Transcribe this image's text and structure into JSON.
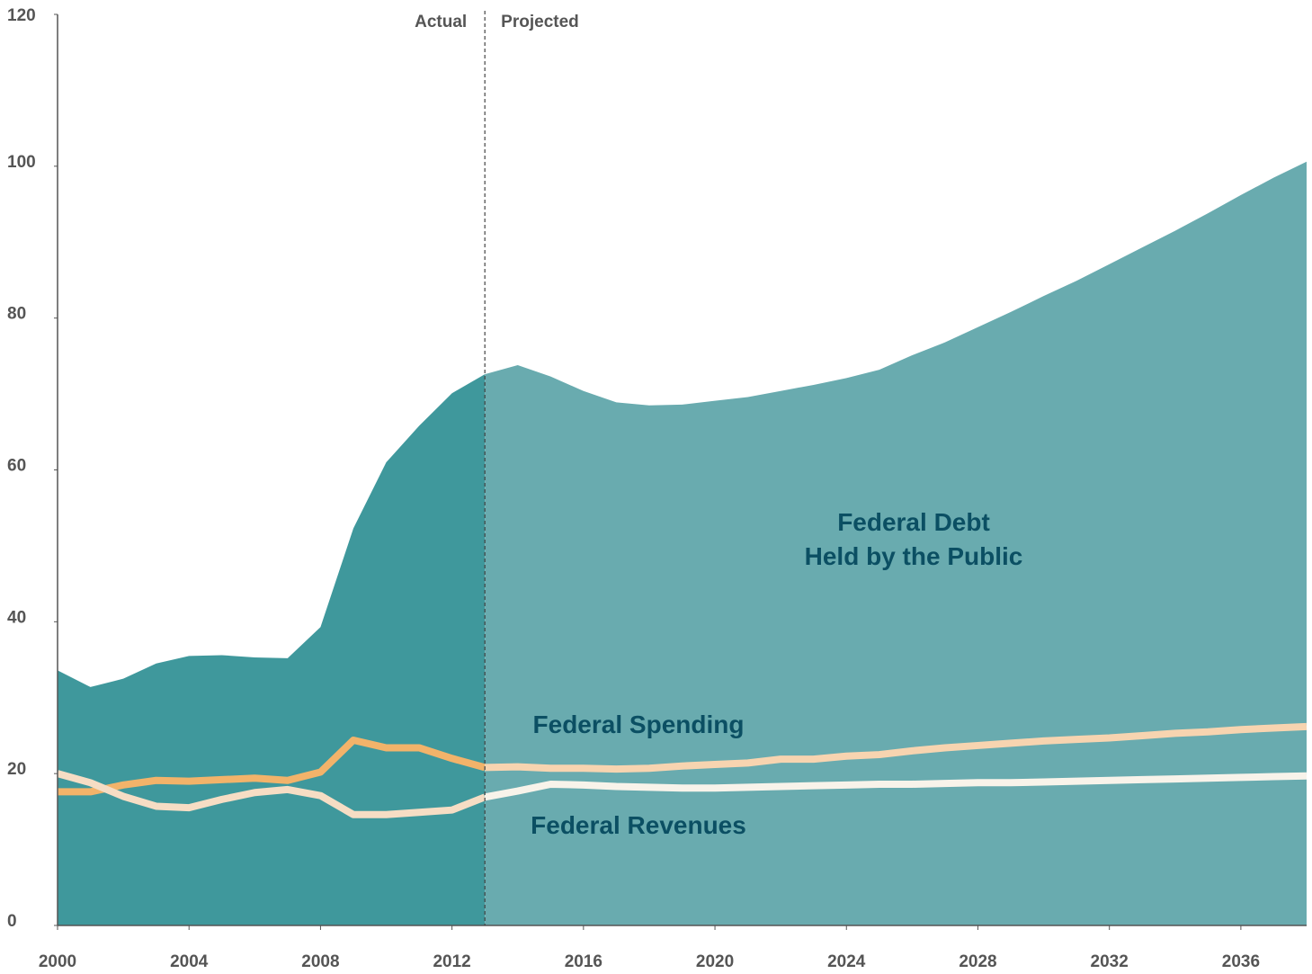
{
  "chart_data": {
    "type": "area-line",
    "xlim": [
      2000,
      2038
    ],
    "xticks": [
      2000,
      2004,
      2008,
      2012,
      2016,
      2020,
      2024,
      2028,
      2032,
      2036
    ],
    "ylim": [
      0,
      120
    ],
    "yticks": [
      0,
      20,
      40,
      60,
      80,
      100,
      120
    ],
    "projection_start": 2013,
    "annotations": [
      "Actual",
      "Projected"
    ],
    "x": [
      2000,
      2001,
      2002,
      2003,
      2004,
      2005,
      2006,
      2007,
      2008,
      2009,
      2010,
      2011,
      2012,
      2013,
      2014,
      2015,
      2016,
      2017,
      2018,
      2019,
      2020,
      2021,
      2022,
      2023,
      2024,
      2025,
      2026,
      2027,
      2028,
      2029,
      2030,
      2031,
      2032,
      2033,
      2034,
      2035,
      2036,
      2037,
      2038
    ],
    "series": [
      {
        "name": "Federal Debt\nHeld by the Public",
        "kind": "area",
        "color": "#3f989c",
        "projected_color": "#69abaf",
        "values": [
          33.6,
          31.4,
          32.5,
          34.5,
          35.5,
          35.6,
          35.3,
          35.2,
          39.3,
          52.3,
          61.0,
          65.8,
          70.1,
          72.6,
          73.8,
          72.3,
          70.4,
          68.9,
          68.5,
          68.6,
          69.1,
          69.6,
          70.4,
          71.2,
          72.1,
          73.2,
          75.1,
          76.8,
          78.8,
          80.8,
          82.9,
          84.9,
          87.1,
          89.3,
          91.5,
          93.8,
          96.2,
          98.5,
          100.6
        ]
      },
      {
        "name": "Federal Spending",
        "kind": "line",
        "color": "#f2b36a",
        "projected_color": "#f7d4b0",
        "values": [
          17.6,
          17.6,
          18.5,
          19.1,
          19.0,
          19.2,
          19.4,
          19.1,
          20.2,
          24.4,
          23.4,
          23.4,
          22.0,
          20.8,
          20.9,
          20.7,
          20.7,
          20.6,
          20.7,
          21.0,
          21.2,
          21.4,
          21.9,
          21.9,
          22.3,
          22.5,
          23.0,
          23.4,
          23.7,
          24.0,
          24.3,
          24.5,
          24.7,
          25.0,
          25.3,
          25.5,
          25.8,
          26.0,
          26.2
        ]
      },
      {
        "name": "Federal Revenues",
        "kind": "line",
        "color": "#f6ddc4",
        "projected_color": "#f8f3ea",
        "values": [
          20.0,
          18.8,
          17.0,
          15.7,
          15.5,
          16.6,
          17.5,
          17.9,
          17.1,
          14.6,
          14.6,
          14.9,
          15.2,
          16.9,
          17.7,
          18.6,
          18.5,
          18.3,
          18.2,
          18.1,
          18.1,
          18.2,
          18.3,
          18.4,
          18.5,
          18.6,
          18.6,
          18.7,
          18.8,
          18.8,
          18.9,
          19.0,
          19.1,
          19.2,
          19.3,
          19.4,
          19.5,
          19.6,
          19.7
        ]
      }
    ]
  }
}
